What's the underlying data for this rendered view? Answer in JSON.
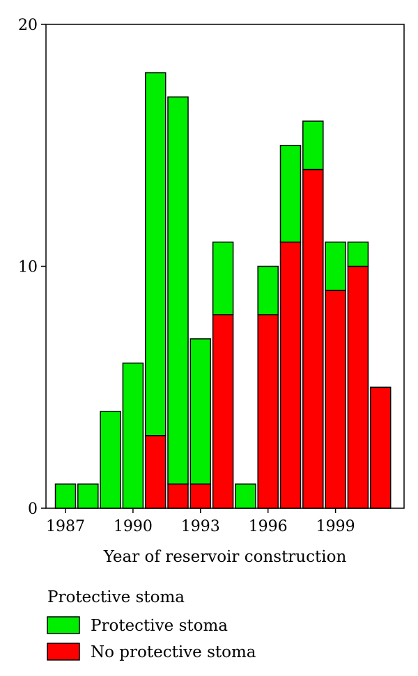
{
  "chart_data": {
    "type": "bar",
    "stacked": true,
    "xlabel": "Year of reservoir construction",
    "ylabel": "",
    "ylim": [
      0,
      20
    ],
    "yticks": [
      "0",
      "10",
      "20"
    ],
    "x_tick_labels": [
      "1987",
      "1990",
      "1993",
      "1996",
      "1999"
    ],
    "categories": [
      1987,
      1988,
      1989,
      1990,
      1991,
      1992,
      1993,
      1994,
      1995,
      1996,
      1997,
      1998,
      1999,
      2000,
      2001
    ],
    "series": [
      {
        "name": "No protective stoma",
        "color": "#ff0000",
        "values": [
          0,
          0,
          0,
          0,
          3,
          1,
          1,
          8,
          0,
          8,
          11,
          14,
          9,
          10,
          5
        ]
      },
      {
        "name": "Protective stoma",
        "color": "#00ee00",
        "values": [
          1,
          1,
          4,
          6,
          15,
          16,
          6,
          3,
          1,
          2,
          4,
          2,
          2,
          1,
          0
        ]
      }
    ],
    "legend": {
      "title": "Protective stoma",
      "placement": "bottom-left",
      "items": [
        {
          "label": "Protective stoma",
          "color": "#00ee00"
        },
        {
          "label": "No protective stoma",
          "color": "#ff0000"
        }
      ]
    },
    "grid": false
  }
}
